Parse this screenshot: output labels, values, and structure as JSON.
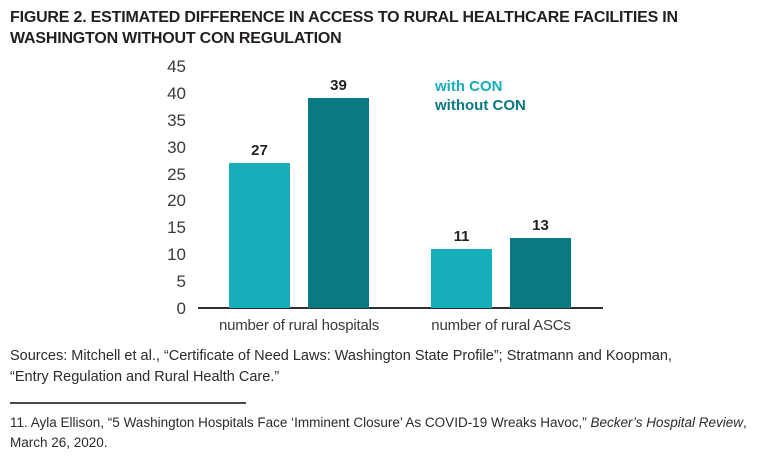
{
  "page": {
    "sources": "Sources: Mitchell et al., “Certificate of Need Laws: Washington State Profile”; Stratmann and Koopman, “Entry Regulation and Rural Health Care.”",
    "footnote": {
      "before_italic": "11. Ayla Ellison, “5 Washington Hospitals Face ‘Imminent Closure’ As COVID-19 Wreaks Havoc,” ",
      "italic": "Becker’s Hospital Review",
      "after_italic": ", March 26, 2020."
    }
  },
  "colors": {
    "with_con": "#17AEBA",
    "without_con": "#0A7A82",
    "axis_line": "#2F2F2F",
    "text_dark": "#231F20",
    "text_gray": "#3A3A3A"
  },
  "chart_data": {
    "type": "bar",
    "title": "FIGURE 2. ESTIMATED DIFFERENCE IN ACCESS TO RURAL HEALTHCARE FACILITIES IN WASHINGTON WITHOUT CON REGULATION",
    "categories": [
      "number of rural hospitals",
      "number of rural ASCs"
    ],
    "series": [
      {
        "name": "with CON",
        "values": [
          27,
          11
        ],
        "color": "#17AEBA"
      },
      {
        "name": "without CON",
        "values": [
          39,
          13
        ],
        "color": "#0A7A82"
      }
    ],
    "ylim": [
      0,
      45
    ],
    "ytick_step": 5,
    "yticks": [
      0,
      5,
      10,
      15,
      20,
      25,
      30,
      35,
      40,
      45
    ],
    "xlabel": "",
    "ylabel": "",
    "grid": false,
    "legend_position": "top-right",
    "bar_value_labels": true
  }
}
